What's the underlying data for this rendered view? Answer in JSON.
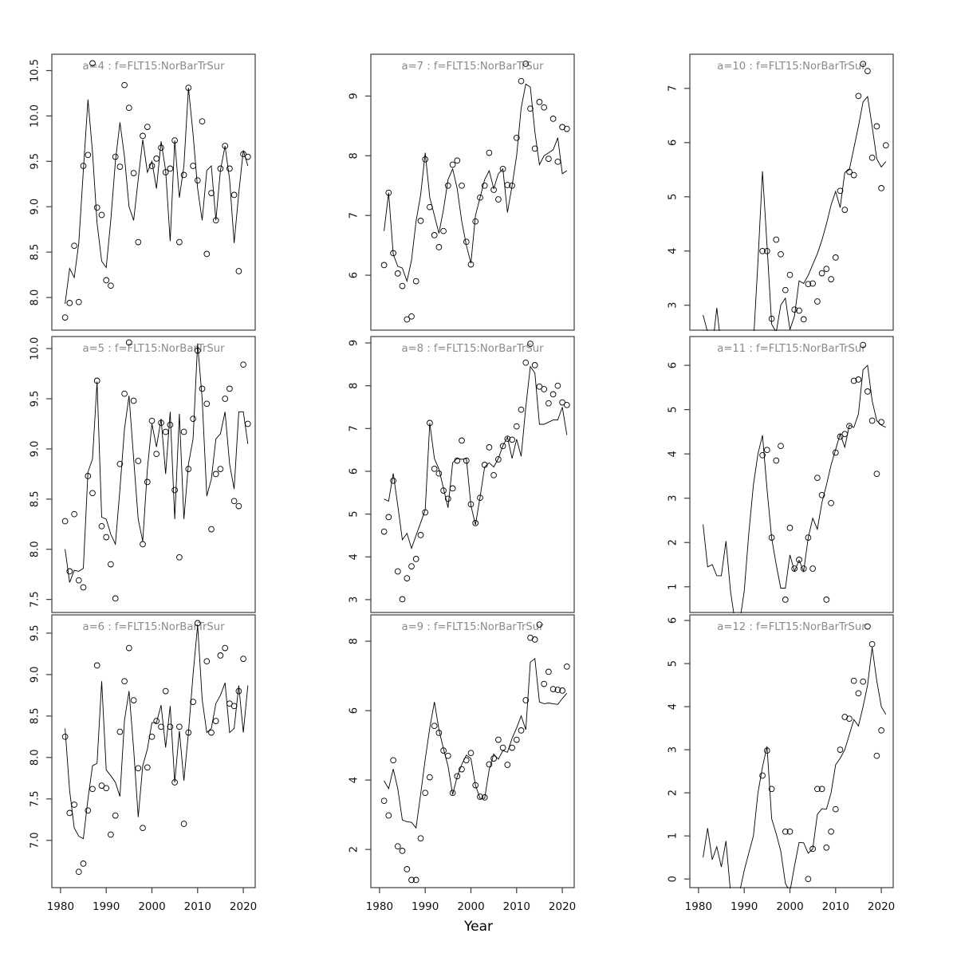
{
  "figure": {
    "xlabel": "Year",
    "xlim": [
      1978.1,
      2022.6
    ],
    "xticks": [
      1980,
      1990,
      2000,
      2010,
      2020
    ],
    "xtick_labels": [
      "1980",
      "1990",
      "2000",
      "2010",
      "2020"
    ],
    "start_year": 1981,
    "colors": {
      "axis": "#3d3d3d",
      "tick_label": "#111111",
      "title": "#8a8a8a",
      "line": "#000000",
      "point": "#000000",
      "background": "#ffffff"
    }
  },
  "chart_data": [
    {
      "id": "a4",
      "type": "line+scatter",
      "row": 0,
      "col": 0,
      "title": "a=4 : f=FLT15:NorBarTrSur",
      "ylim": [
        7.64,
        10.68
      ],
      "yticks": [
        8.0,
        8.5,
        9.0,
        9.5,
        10.0,
        10.5
      ],
      "ytick_labels": [
        "8.0",
        "8.5",
        "9.0",
        "9.5",
        "10.0",
        "10.5"
      ],
      "line_values": [
        7.93,
        8.32,
        8.22,
        8.6,
        9.4,
        10.18,
        9.6,
        8.82,
        8.4,
        8.33,
        8.85,
        9.5,
        9.93,
        9.55,
        9.0,
        8.85,
        9.3,
        9.74,
        9.38,
        9.5,
        9.2,
        9.72,
        9.4,
        8.62,
        9.73,
        9.1,
        9.45,
        10.31,
        9.8,
        9.2,
        8.85,
        9.4,
        9.45,
        8.85,
        9.4,
        9.67,
        9.3,
        8.6,
        9.15,
        9.62,
        9.45
      ],
      "point_values": [
        7.78,
        7.94,
        8.57,
        7.95,
        9.45,
        9.57,
        10.58,
        8.99,
        8.91,
        8.19,
        8.13,
        9.55,
        9.44,
        10.34,
        10.09,
        9.37,
        8.61,
        9.78,
        9.88,
        9.45,
        9.53,
        9.65,
        9.38,
        9.42,
        9.73,
        8.61,
        9.35,
        10.31,
        9.45,
        9.29,
        9.94,
        8.48,
        9.15,
        8.85,
        9.42,
        9.67,
        9.42,
        9.13,
        8.29,
        9.58,
        9.55
      ]
    },
    {
      "id": "a5",
      "type": "line+scatter",
      "row": 1,
      "col": 0,
      "title": "a=5 : f=FLT15:NorBarTrSur",
      "ylim": [
        7.37,
        10.12
      ],
      "yticks": [
        7.5,
        8.0,
        8.5,
        9.0,
        9.5,
        10.0
      ],
      "ytick_labels": [
        "7.5",
        "8.0",
        "8.5",
        "9.0",
        "9.5",
        "10.0"
      ],
      "line_values": [
        8.0,
        7.67,
        7.79,
        7.78,
        7.81,
        8.77,
        8.9,
        9.67,
        8.32,
        8.3,
        8.15,
        8.05,
        8.6,
        9.2,
        9.53,
        8.9,
        8.3,
        8.08,
        8.8,
        9.25,
        9.02,
        9.3,
        8.75,
        9.37,
        8.3,
        9.35,
        8.3,
        8.85,
        9.1,
        10.05,
        9.5,
        8.53,
        8.7,
        9.1,
        9.15,
        9.37,
        8.85,
        8.6,
        9.37,
        9.37,
        9.05
      ],
      "point_values": [
        8.28,
        7.78,
        8.35,
        7.69,
        7.62,
        8.73,
        8.56,
        9.68,
        8.23,
        8.12,
        7.85,
        7.51,
        8.85,
        9.55,
        10.06,
        9.48,
        8.88,
        8.05,
        8.67,
        9.28,
        8.95,
        9.26,
        9.17,
        9.24,
        8.59,
        7.92,
        9.17,
        8.8,
        9.3,
        9.98,
        9.6,
        9.45,
        8.2,
        8.75,
        8.8,
        9.5,
        9.6,
        8.48,
        8.43,
        9.84,
        9.25
      ]
    },
    {
      "id": "a6",
      "type": "line+scatter",
      "row": 2,
      "col": 0,
      "title": "a=6 : f=FLT15:NorBarTrSur",
      "ylim": [
        6.43,
        9.72
      ],
      "yticks": [
        7.0,
        7.5,
        8.0,
        8.5,
        9.0,
        9.5
      ],
      "ytick_labels": [
        "7.0",
        "7.5",
        "8.0",
        "8.5",
        "9.0",
        "9.5"
      ],
      "line_values": [
        8.35,
        7.6,
        7.15,
        7.05,
        7.02,
        7.5,
        7.9,
        7.93,
        8.92,
        7.85,
        7.78,
        7.7,
        7.53,
        8.45,
        8.8,
        8.1,
        7.28,
        7.9,
        8.1,
        8.42,
        8.42,
        8.63,
        8.12,
        8.62,
        7.7,
        8.32,
        7.72,
        8.3,
        9.0,
        9.6,
        8.7,
        8.3,
        8.35,
        8.65,
        8.75,
        8.9,
        8.3,
        8.35,
        8.87,
        8.3,
        8.87
      ],
      "point_values": [
        8.25,
        7.33,
        7.43,
        6.62,
        6.72,
        7.36,
        7.62,
        9.11,
        7.66,
        7.63,
        7.07,
        7.3,
        8.31,
        8.92,
        9.32,
        8.69,
        7.87,
        7.15,
        7.88,
        8.25,
        8.44,
        8.37,
        8.8,
        8.37,
        7.7,
        8.37,
        7.2,
        8.3,
        8.67,
        9.62,
        null,
        9.16,
        8.3,
        8.44,
        9.23,
        9.32,
        8.65,
        8.62,
        8.8,
        9.19,
        null
      ]
    },
    {
      "id": "a7",
      "type": "line+scatter",
      "row": 0,
      "col": 1,
      "title": "a=7 : f=FLT15:NorBarTrSur",
      "ylim": [
        5.08,
        9.7
      ],
      "yticks": [
        6,
        7,
        8,
        9
      ],
      "ytick_labels": [
        "6",
        "7",
        "8",
        "9"
      ],
      "line_values": [
        6.74,
        7.38,
        6.35,
        6.15,
        6.12,
        5.9,
        6.25,
        6.9,
        7.35,
        8.05,
        7.3,
        7.0,
        6.7,
        7.1,
        7.6,
        7.78,
        7.45,
        6.9,
        6.5,
        6.2,
        7.0,
        7.3,
        7.6,
        7.75,
        7.45,
        7.7,
        7.78,
        7.05,
        7.5,
        8.0,
        8.8,
        9.2,
        9.15,
        8.4,
        7.85,
        8.0,
        8.05,
        8.1,
        8.3,
        7.7,
        7.75
      ],
      "point_values": [
        6.17,
        7.38,
        6.37,
        6.03,
        5.82,
        5.26,
        5.31,
        5.9,
        6.91,
        7.94,
        7.14,
        6.67,
        6.47,
        6.74,
        7.5,
        7.85,
        7.92,
        7.5,
        6.56,
        6.18,
        6.9,
        7.3,
        7.5,
        8.05,
        7.43,
        7.27,
        7.78,
        7.51,
        7.5,
        8.3,
        9.25,
        9.54,
        8.79,
        8.12,
        8.9,
        8.81,
        7.95,
        8.62,
        7.9,
        8.48,
        8.45
      ]
    },
    {
      "id": "a8",
      "type": "line+scatter",
      "row": 1,
      "col": 1,
      "title": "a=8 : f=FLT15:NorBarTrSur",
      "ylim": [
        2.7,
        9.15
      ],
      "yticks": [
        3,
        4,
        5,
        6,
        7,
        8,
        9
      ],
      "ytick_labels": [
        "3",
        "4",
        "5",
        "6",
        "7",
        "8",
        "9"
      ],
      "line_values": [
        5.35,
        5.3,
        5.95,
        5.2,
        4.4,
        4.55,
        4.2,
        4.5,
        4.8,
        5.1,
        7.13,
        6.3,
        6.05,
        5.6,
        5.15,
        6.2,
        6.3,
        6.28,
        6.3,
        5.2,
        4.75,
        5.4,
        6.1,
        6.2,
        6.1,
        6.3,
        6.6,
        6.8,
        6.3,
        6.75,
        6.35,
        7.5,
        8.45,
        8.3,
        7.1,
        7.1,
        7.15,
        7.2,
        7.2,
        7.5,
        6.85
      ],
      "point_values": [
        4.59,
        4.93,
        5.78,
        3.66,
        3.01,
        3.5,
        3.78,
        3.95,
        4.51,
        5.04,
        7.13,
        6.06,
        5.95,
        5.55,
        5.36,
        5.6,
        6.25,
        6.72,
        6.25,
        5.23,
        4.79,
        5.38,
        6.15,
        6.56,
        5.91,
        6.28,
        6.59,
        6.76,
        6.74,
        7.05,
        7.44,
        8.54,
        8.98,
        8.48,
        7.98,
        7.92,
        7.59,
        7.8,
        8.0,
        7.61,
        7.55
      ]
    },
    {
      "id": "a9",
      "type": "line+scatter",
      "row": 2,
      "col": 1,
      "title": "a=9 : f=FLT15:NorBarTrSur",
      "ylim": [
        0.9,
        8.76
      ],
      "yticks": [
        2,
        4,
        6,
        8
      ],
      "ytick_labels": [
        "2",
        "4",
        "6",
        "8"
      ],
      "line_values": [
        3.98,
        3.75,
        4.32,
        3.75,
        2.85,
        2.8,
        2.78,
        2.62,
        3.6,
        4.6,
        5.5,
        6.25,
        5.45,
        4.9,
        4.4,
        3.58,
        4.1,
        4.45,
        4.72,
        4.62,
        3.85,
        3.47,
        3.47,
        4.3,
        4.75,
        4.6,
        4.85,
        4.8,
        5.2,
        5.5,
        5.85,
        5.45,
        7.4,
        7.5,
        6.25,
        6.2,
        6.22,
        6.2,
        6.18,
        6.35,
        6.5
      ],
      "point_values": [
        3.4,
        2.98,
        4.57,
        2.09,
        1.96,
        1.43,
        1.12,
        1.12,
        2.32,
        3.63,
        4.08,
        5.56,
        5.36,
        4.85,
        4.7,
        3.63,
        4.11,
        4.31,
        4.57,
        4.78,
        3.85,
        3.52,
        3.5,
        4.45,
        4.62,
        5.16,
        4.93,
        4.44,
        4.93,
        5.16,
        5.43,
        6.3,
        8.1,
        8.05,
        8.48,
        6.77,
        7.12,
        6.62,
        6.6,
        6.58,
        7.27
      ]
    },
    {
      "id": "a10",
      "type": "line+scatter",
      "row": 0,
      "col": 2,
      "title": "a=10 : f=FLT15:NorBarTrSur",
      "ylim": [
        2.54,
        7.63
      ],
      "yticks": [
        3,
        4,
        5,
        6,
        7
      ],
      "ytick_labels": [
        "3",
        "4",
        "5",
        "6",
        "7"
      ],
      "line_values": [
        2.82,
        2.5,
        2.2,
        2.95,
        2.2,
        1.9,
        1.8,
        2.0,
        2.2,
        2.1,
        2.0,
        2.3,
        3.8,
        5.47,
        4.1,
        2.65,
        2.5,
        3.0,
        3.13,
        2.55,
        2.8,
        3.45,
        3.4,
        3.55,
        3.75,
        3.95,
        4.2,
        4.5,
        4.85,
        5.1,
        4.8,
        5.45,
        5.5,
        5.9,
        6.3,
        6.75,
        6.85,
        6.3,
        5.7,
        5.55,
        5.65
      ],
      "point_values": [
        null,
        null,
        null,
        null,
        null,
        null,
        null,
        null,
        null,
        null,
        null,
        null,
        null,
        4.0,
        4.0,
        2.75,
        4.21,
        3.94,
        3.28,
        3.56,
        2.92,
        2.9,
        2.74,
        3.39,
        3.4,
        3.07,
        3.59,
        3.67,
        3.48,
        3.88,
        5.11,
        4.76,
        5.46,
        5.4,
        6.86,
        7.45,
        7.32,
        5.72,
        6.3,
        5.16,
        5.95
      ]
    },
    {
      "id": "a11",
      "type": "line+scatter",
      "row": 1,
      "col": 2,
      "title": "a=11 : f=FLT15:NorBarTrSur",
      "ylim": [
        0.42,
        6.65
      ],
      "yticks": [
        1,
        2,
        3,
        4,
        5,
        6
      ],
      "ytick_labels": [
        "1",
        "2",
        "3",
        "4",
        "5",
        "6"
      ],
      "line_values": [
        2.41,
        1.45,
        1.5,
        1.25,
        1.25,
        2.03,
        0.9,
        0.2,
        0.2,
        0.9,
        2.2,
        3.3,
        4.0,
        4.42,
        3.2,
        2.1,
        1.5,
        0.97,
        0.97,
        1.72,
        1.35,
        1.6,
        1.35,
        2.1,
        2.55,
        2.3,
        2.9,
        3.3,
        3.75,
        4.1,
        4.45,
        4.15,
        4.65,
        4.6,
        4.9,
        5.9,
        6.0,
        5.2,
        4.75,
        4.65,
        4.6
      ],
      "point_values": [
        null,
        null,
        null,
        null,
        null,
        null,
        null,
        null,
        null,
        null,
        null,
        null,
        null,
        3.97,
        4.09,
        2.11,
        3.85,
        4.18,
        0.71,
        2.33,
        1.41,
        1.61,
        1.41,
        2.11,
        1.41,
        3.46,
        3.07,
        0.71,
        2.89,
        4.03,
        4.39,
        4.45,
        4.63,
        5.65,
        5.68,
        6.46,
        5.41,
        4.75,
        3.55,
        4.72,
        null
      ]
    },
    {
      "id": "a12",
      "type": "line+scatter",
      "row": 2,
      "col": 2,
      "title": "a=12 : f=FLT15:NorBarTrSur",
      "ylim": [
        -0.2,
        6.13
      ],
      "yticks": [
        0,
        1,
        2,
        3,
        4,
        5,
        6
      ],
      "ytick_labels": [
        "0",
        "1",
        "2",
        "3",
        "4",
        "5",
        "6"
      ],
      "line_values": [
        0.5,
        1.18,
        0.45,
        0.75,
        0.28,
        0.88,
        -0.3,
        -0.4,
        -0.3,
        0.2,
        0.6,
        1.0,
        2.0,
        2.6,
        3.08,
        1.4,
        1.05,
        0.65,
        -0.1,
        -0.3,
        0.3,
        0.85,
        0.84,
        0.6,
        0.7,
        1.5,
        1.63,
        1.62,
        2.0,
        2.65,
        2.8,
        3.0,
        3.35,
        3.7,
        3.55,
        4.0,
        4.5,
        5.38,
        4.6,
        4.0,
        3.82
      ],
      "point_values": [
        null,
        null,
        null,
        null,
        null,
        null,
        null,
        null,
        null,
        null,
        null,
        null,
        null,
        2.4,
        2.98,
        2.09,
        null,
        null,
        1.1,
        1.1,
        null,
        null,
        null,
        0.0,
        0.7,
        2.09,
        2.09,
        0.73,
        1.1,
        1.62,
        3.0,
        3.76,
        3.72,
        4.6,
        4.31,
        4.58,
        5.86,
        5.45,
        2.86,
        3.45,
        null
      ]
    }
  ]
}
